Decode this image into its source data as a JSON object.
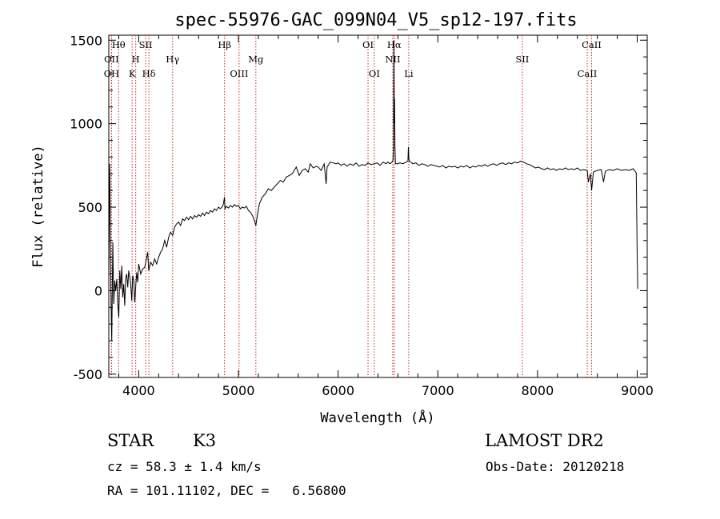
{
  "chart_data": {
    "type": "line",
    "title": "spec-55976-GAC_099N04_V5_sp12-197.fits",
    "xlabel": "Wavelength (Å)",
    "ylabel": "Flux (relative)",
    "xlim": [
      3700,
      9100
    ],
    "ylim": [
      -520,
      1530
    ],
    "xticks": [
      4000,
      5000,
      6000,
      7000,
      8000,
      9000
    ],
    "yticks": [
      -500,
      0,
      500,
      1000,
      1500
    ],
    "grid": false,
    "colors": {
      "spectrum": "#000000",
      "lines": "#c62828",
      "axes": "#000000"
    },
    "series": [
      {
        "points": [
          [
            3700,
            100
          ],
          [
            3710,
            760
          ],
          [
            3715,
            380
          ],
          [
            3720,
            20
          ],
          [
            3730,
            -300
          ],
          [
            3740,
            290
          ],
          [
            3750,
            -80
          ],
          [
            3760,
            60
          ],
          [
            3770,
            0
          ],
          [
            3780,
            70
          ],
          [
            3790,
            -80
          ],
          [
            3800,
            -160
          ],
          [
            3810,
            120
          ],
          [
            3820,
            10
          ],
          [
            3830,
            150
          ],
          [
            3840,
            -40
          ],
          [
            3850,
            40
          ],
          [
            3860,
            -90
          ],
          [
            3870,
            80
          ],
          [
            3880,
            100
          ],
          [
            3890,
            20
          ],
          [
            3900,
            120
          ],
          [
            3910,
            80
          ],
          [
            3920,
            40
          ],
          [
            3930,
            -60
          ],
          [
            3940,
            90
          ],
          [
            3950,
            60
          ],
          [
            3960,
            -70
          ],
          [
            3970,
            30
          ],
          [
            3980,
            110
          ],
          [
            3990,
            50
          ],
          [
            4000,
            160
          ],
          [
            4020,
            100
          ],
          [
            4040,
            130
          ],
          [
            4060,
            140
          ],
          [
            4080,
            200
          ],
          [
            4090,
            230
          ],
          [
            4100,
            120
          ],
          [
            4120,
            170
          ],
          [
            4140,
            150
          ],
          [
            4160,
            190
          ],
          [
            4180,
            160
          ],
          [
            4200,
            200
          ],
          [
            4220,
            230
          ],
          [
            4240,
            250
          ],
          [
            4260,
            300
          ],
          [
            4280,
            260
          ],
          [
            4300,
            320
          ],
          [
            4320,
            350
          ],
          [
            4340,
            330
          ],
          [
            4360,
            380
          ],
          [
            4380,
            400
          ],
          [
            4400,
            410
          ],
          [
            4420,
            390
          ],
          [
            4440,
            430
          ],
          [
            4460,
            420
          ],
          [
            4480,
            440
          ],
          [
            4500,
            425
          ],
          [
            4520,
            445
          ],
          [
            4540,
            430
          ],
          [
            4560,
            450
          ],
          [
            4580,
            440
          ],
          [
            4600,
            455
          ],
          [
            4620,
            445
          ],
          [
            4640,
            465
          ],
          [
            4660,
            450
          ],
          [
            4680,
            470
          ],
          [
            4700,
            460
          ],
          [
            4720,
            480
          ],
          [
            4740,
            470
          ],
          [
            4760,
            490
          ],
          [
            4780,
            480
          ],
          [
            4800,
            500
          ],
          [
            4820,
            490
          ],
          [
            4840,
            505
          ],
          [
            4850,
            520
          ],
          [
            4860,
            560
          ],
          [
            4865,
            490
          ],
          [
            4880,
            505
          ],
          [
            4900,
            495
          ],
          [
            4920,
            510
          ],
          [
            4940,
            500
          ],
          [
            4960,
            515
          ],
          [
            4980,
            505
          ],
          [
            5000,
            510
          ],
          [
            5020,
            490
          ],
          [
            5040,
            500
          ],
          [
            5060,
            495
          ],
          [
            5080,
            505
          ],
          [
            5100,
            480
          ],
          [
            5120,
            470
          ],
          [
            5140,
            450
          ],
          [
            5160,
            420
          ],
          [
            5175,
            390
          ],
          [
            5190,
            450
          ],
          [
            5210,
            520
          ],
          [
            5240,
            560
          ],
          [
            5270,
            580
          ],
          [
            5300,
            610
          ],
          [
            5330,
            600
          ],
          [
            5360,
            620
          ],
          [
            5390,
            640
          ],
          [
            5420,
            660
          ],
          [
            5450,
            650
          ],
          [
            5480,
            680
          ],
          [
            5510,
            690
          ],
          [
            5540,
            700
          ],
          [
            5560,
            720
          ],
          [
            5580,
            740
          ],
          [
            5610,
            690
          ],
          [
            5640,
            720
          ],
          [
            5670,
            730
          ],
          [
            5700,
            710
          ],
          [
            5720,
            760
          ],
          [
            5750,
            735
          ],
          [
            5780,
            745
          ],
          [
            5800,
            740
          ],
          [
            5830,
            720
          ],
          [
            5860,
            760
          ],
          [
            5880,
            640
          ],
          [
            5890,
            740
          ],
          [
            5920,
            770
          ],
          [
            5950,
            765
          ],
          [
            5980,
            760
          ],
          [
            6000,
            765
          ],
          [
            6030,
            750
          ],
          [
            6060,
            760
          ],
          [
            6090,
            745
          ],
          [
            6120,
            760
          ],
          [
            6150,
            750
          ],
          [
            6180,
            765
          ],
          [
            6210,
            745
          ],
          [
            6240,
            755
          ],
          [
            6270,
            750
          ],
          [
            6300,
            765
          ],
          [
            6330,
            755
          ],
          [
            6360,
            760
          ],
          [
            6390,
            765
          ],
          [
            6420,
            750
          ],
          [
            6450,
            770
          ],
          [
            6480,
            760
          ],
          [
            6500,
            770
          ],
          [
            6520,
            760
          ],
          [
            6540,
            770
          ],
          [
            6550,
            780
          ],
          [
            6556,
            860
          ],
          [
            6560,
            1500
          ],
          [
            6563,
            1000
          ],
          [
            6566,
            1150
          ],
          [
            6570,
            860
          ],
          [
            6575,
            760
          ],
          [
            6600,
            760
          ],
          [
            6620,
            765
          ],
          [
            6650,
            760
          ],
          [
            6680,
            770
          ],
          [
            6700,
            775
          ],
          [
            6705,
            860
          ],
          [
            6710,
            790
          ],
          [
            6715,
            775
          ],
          [
            6750,
            760
          ],
          [
            6780,
            765
          ],
          [
            6810,
            750
          ],
          [
            6840,
            760
          ],
          [
            6870,
            755
          ],
          [
            6900,
            745
          ],
          [
            6930,
            755
          ],
          [
            6960,
            750
          ],
          [
            6990,
            745
          ],
          [
            7020,
            740
          ],
          [
            7050,
            750
          ],
          [
            7080,
            735
          ],
          [
            7110,
            745
          ],
          [
            7140,
            740
          ],
          [
            7170,
            745
          ],
          [
            7200,
            735
          ],
          [
            7230,
            745
          ],
          [
            7260,
            740
          ],
          [
            7290,
            750
          ],
          [
            7320,
            735
          ],
          [
            7350,
            745
          ],
          [
            7380,
            740
          ],
          [
            7410,
            750
          ],
          [
            7440,
            745
          ],
          [
            7470,
            755
          ],
          [
            7500,
            745
          ],
          [
            7530,
            755
          ],
          [
            7560,
            760
          ],
          [
            7590,
            750
          ],
          [
            7620,
            760
          ],
          [
            7650,
            765
          ],
          [
            7680,
            755
          ],
          [
            7710,
            765
          ],
          [
            7740,
            760
          ],
          [
            7770,
            770
          ],
          [
            7800,
            765
          ],
          [
            7830,
            775
          ],
          [
            7860,
            770
          ],
          [
            7890,
            760
          ],
          [
            7920,
            755
          ],
          [
            7950,
            745
          ],
          [
            7980,
            735
          ],
          [
            8010,
            740
          ],
          [
            8040,
            730
          ],
          [
            8070,
            725
          ],
          [
            8100,
            735
          ],
          [
            8130,
            725
          ],
          [
            8160,
            730
          ],
          [
            8190,
            720
          ],
          [
            8220,
            730
          ],
          [
            8250,
            725
          ],
          [
            8280,
            735
          ],
          [
            8310,
            725
          ],
          [
            8340,
            730
          ],
          [
            8370,
            725
          ],
          [
            8400,
            735
          ],
          [
            8430,
            720
          ],
          [
            8460,
            725
          ],
          [
            8498,
            720
          ],
          [
            8510,
            650
          ],
          [
            8530,
            700
          ],
          [
            8542,
            600
          ],
          [
            8560,
            710
          ],
          [
            8600,
            720
          ],
          [
            8640,
            725
          ],
          [
            8662,
            650
          ],
          [
            8680,
            715
          ],
          [
            8720,
            725
          ],
          [
            8760,
            720
          ],
          [
            8800,
            730
          ],
          [
            8840,
            720
          ],
          [
            8880,
            725
          ],
          [
            8920,
            720
          ],
          [
            8960,
            730
          ],
          [
            8990,
            705
          ],
          [
            9000,
            200
          ],
          [
            9005,
            10
          ]
        ]
      }
    ],
    "emission_lines": [
      {
        "label": "Hθ",
        "x": 3798,
        "row": 0
      },
      {
        "label": "OII",
        "x": 3727,
        "row": 1
      },
      {
        "label": "H",
        "x": 3970,
        "row": 1
      },
      {
        "label": "SII",
        "x": 4070,
        "row": 0
      },
      {
        "label": "Hγ",
        "x": 4340,
        "row": 1
      },
      {
        "label": "Hβ",
        "x": 4861,
        "row": 0
      },
      {
        "label": "Mg",
        "x": 5175,
        "row": 1
      },
      {
        "label": "OI",
        "x": 6300,
        "row": 0
      },
      {
        "label": "Hα",
        "x": 6563,
        "row": 0
      },
      {
        "label": "NII",
        "x": 6548,
        "row": 1
      },
      {
        "label": "SII",
        "x": 7847,
        "row": 1
      },
      {
        "label": "CaII",
        "x": 8542,
        "row": 0
      }
    ],
    "absorption_lines": [
      {
        "label": "OH",
        "x": 3728,
        "row": 2
      },
      {
        "label": "K",
        "x": 3934,
        "row": 2
      },
      {
        "label": "Hδ",
        "x": 4102,
        "row": 2
      },
      {
        "label": "OIII",
        "x": 5007,
        "row": 2
      },
      {
        "label": "OI",
        "x": 6363,
        "row": 2
      },
      {
        "label": "Li",
        "x": 6708,
        "row": 2
      },
      {
        "label": "CaII",
        "x": 8498,
        "row": 2
      }
    ]
  },
  "info": {
    "object_class": "STAR",
    "subclass": "K3",
    "survey": "LAMOST DR2",
    "redshift_line": "cz = 58.3 ± 1.4 km/s",
    "obs_date_line": "Obs-Date: 20120218",
    "coords_line": "RA = 101.11102, DEC =   6.56800"
  }
}
